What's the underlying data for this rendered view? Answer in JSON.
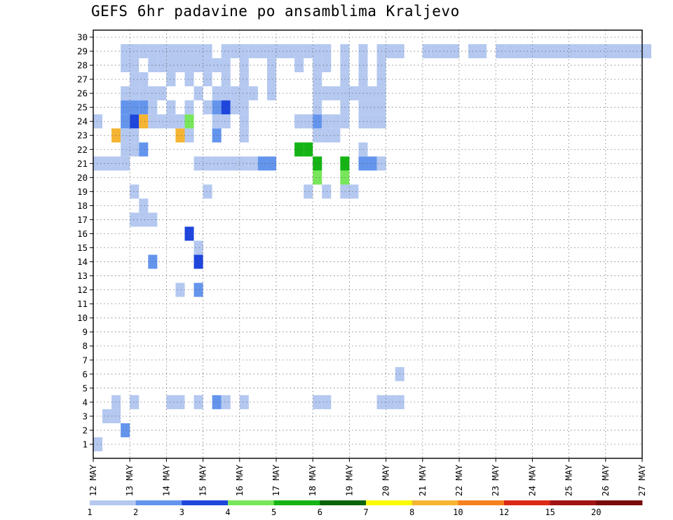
{
  "chart_data": {
    "type": "heatmap",
    "title": "GEFS 6hr padavine po ansamblima Kraljevo",
    "xlabel": "",
    "ylabel": "",
    "x_tick_labels": [
      "12 MAY",
      "13 MAY",
      "14 MAY",
      "15 MAY",
      "16 MAY",
      "17 MAY",
      "18 MAY",
      "19 MAY",
      "20 MAY",
      "21 MAY",
      "22 MAY",
      "23 MAY",
      "24 MAY",
      "25 MAY",
      "26 MAY",
      "27 MAY"
    ],
    "y_tick_labels": [
      "1",
      "2",
      "3",
      "4",
      "5",
      "6",
      "7",
      "8",
      "9",
      "10",
      "11",
      "12",
      "13",
      "14",
      "15",
      "16",
      "17",
      "18",
      "19",
      "20",
      "21",
      "22",
      "23",
      "24",
      "25",
      "26",
      "27",
      "28",
      "29",
      "30"
    ],
    "grid": true,
    "legend_placement": "bottom",
    "colorbar_labels": [
      "1",
      "2",
      "3",
      "4",
      "5",
      "6",
      "7",
      "8",
      "10",
      "12",
      "15",
      "20"
    ],
    "colorbar_colors": [
      "#b4c8f0",
      "#6495ed",
      "#1e46dc",
      "#78e65a",
      "#14b414",
      "#0a640a",
      "#fafa00",
      "#f5b432",
      "#f5821e",
      "#dc2814",
      "#a01414",
      "#780a0a"
    ],
    "x_range_days": [
      "12 MAY",
      "27 MAY"
    ],
    "time_step": "6hr",
    "cells": [
      [
        0,
        1,
        1
      ],
      [
        3,
        2,
        2
      ],
      [
        1,
        3,
        1
      ],
      [
        2,
        3,
        1
      ],
      [
        2,
        4,
        1
      ],
      [
        4,
        4,
        1
      ],
      [
        8,
        4,
        1
      ],
      [
        9,
        4,
        1
      ],
      [
        11,
        4,
        1
      ],
      [
        13,
        4,
        2
      ],
      [
        14,
        4,
        1
      ],
      [
        16,
        4,
        1
      ],
      [
        24,
        4,
        1
      ],
      [
        25,
        4,
        1
      ],
      [
        31,
        4,
        1
      ],
      [
        32,
        4,
        1
      ],
      [
        33,
        4,
        1
      ],
      [
        33,
        6,
        1
      ],
      [
        9,
        12,
        1
      ],
      [
        11,
        12,
        2
      ],
      [
        6,
        14,
        2
      ],
      [
        11,
        14,
        3
      ],
      [
        11,
        15,
        1
      ],
      [
        10,
        16,
        3
      ],
      [
        4,
        17,
        1
      ],
      [
        5,
        17,
        1
      ],
      [
        6,
        17,
        1
      ],
      [
        5,
        18,
        1
      ],
      [
        4,
        19,
        1
      ],
      [
        12,
        19,
        1
      ],
      [
        23,
        19,
        1
      ],
      [
        25,
        19,
        1
      ],
      [
        27,
        19,
        1
      ],
      [
        28,
        19,
        1
      ],
      [
        24,
        20,
        4
      ],
      [
        27,
        20,
        4
      ],
      [
        0,
        21,
        1
      ],
      [
        1,
        21,
        1
      ],
      [
        2,
        21,
        1
      ],
      [
        3,
        21,
        1
      ],
      [
        11,
        21,
        1
      ],
      [
        12,
        21,
        1
      ],
      [
        13,
        21,
        1
      ],
      [
        14,
        21,
        1
      ],
      [
        15,
        21,
        1
      ],
      [
        16,
        21,
        1
      ],
      [
        17,
        21,
        1
      ],
      [
        18,
        21,
        2
      ],
      [
        19,
        21,
        2
      ],
      [
        24,
        21,
        5
      ],
      [
        27,
        21,
        5
      ],
      [
        29,
        21,
        2
      ],
      [
        30,
        21,
        2
      ],
      [
        31,
        21,
        1
      ],
      [
        3,
        22,
        1
      ],
      [
        4,
        22,
        1
      ],
      [
        5,
        22,
        2
      ],
      [
        22,
        22,
        5
      ],
      [
        23,
        22,
        5
      ],
      [
        29,
        22,
        1
      ],
      [
        2,
        23,
        8
      ],
      [
        3,
        23,
        1
      ],
      [
        4,
        23,
        1
      ],
      [
        9,
        23,
        8
      ],
      [
        10,
        23,
        1
      ],
      [
        13,
        23,
        2
      ],
      [
        16,
        23,
        1
      ],
      [
        24,
        23,
        1
      ],
      [
        25,
        23,
        1
      ],
      [
        26,
        23,
        1
      ],
      [
        0,
        24,
        1
      ],
      [
        3,
        24,
        2
      ],
      [
        4,
        24,
        3
      ],
      [
        5,
        24,
        8
      ],
      [
        6,
        24,
        1
      ],
      [
        7,
        24,
        1
      ],
      [
        8,
        24,
        1
      ],
      [
        9,
        24,
        1
      ],
      [
        10,
        24,
        4
      ],
      [
        13,
        24,
        1
      ],
      [
        14,
        24,
        1
      ],
      [
        16,
        24,
        1
      ],
      [
        22,
        24,
        1
      ],
      [
        23,
        24,
        1
      ],
      [
        24,
        24,
        2
      ],
      [
        25,
        24,
        1
      ],
      [
        26,
        24,
        1
      ],
      [
        27,
        24,
        1
      ],
      [
        29,
        24,
        1
      ],
      [
        30,
        24,
        1
      ],
      [
        31,
        24,
        1
      ],
      [
        3,
        25,
        2
      ],
      [
        4,
        25,
        2
      ],
      [
        5,
        25,
        2
      ],
      [
        6,
        25,
        1
      ],
      [
        8,
        25,
        1
      ],
      [
        10,
        25,
        1
      ],
      [
        12,
        25,
        1
      ],
      [
        13,
        25,
        2
      ],
      [
        14,
        25,
        3
      ],
      [
        15,
        25,
        1
      ],
      [
        16,
        25,
        1
      ],
      [
        24,
        25,
        1
      ],
      [
        27,
        25,
        1
      ],
      [
        29,
        25,
        1
      ],
      [
        30,
        25,
        1
      ],
      [
        31,
        25,
        1
      ],
      [
        3,
        26,
        1
      ],
      [
        4,
        26,
        1
      ],
      [
        5,
        26,
        1
      ],
      [
        6,
        26,
        1
      ],
      [
        7,
        26,
        1
      ],
      [
        11,
        26,
        1
      ],
      [
        13,
        26,
        1
      ],
      [
        14,
        26,
        1
      ],
      [
        15,
        26,
        1
      ],
      [
        16,
        26,
        1
      ],
      [
        17,
        26,
        1
      ],
      [
        19,
        26,
        1
      ],
      [
        24,
        26,
        1
      ],
      [
        25,
        26,
        1
      ],
      [
        26,
        26,
        1
      ],
      [
        27,
        26,
        1
      ],
      [
        28,
        26,
        1
      ],
      [
        29,
        26,
        1
      ],
      [
        30,
        26,
        1
      ],
      [
        31,
        26,
        1
      ],
      [
        4,
        27,
        1
      ],
      [
        5,
        27,
        1
      ],
      [
        8,
        27,
        1
      ],
      [
        10,
        27,
        1
      ],
      [
        12,
        27,
        1
      ],
      [
        14,
        27,
        1
      ],
      [
        16,
        27,
        1
      ],
      [
        19,
        27,
        1
      ],
      [
        24,
        27,
        1
      ],
      [
        27,
        27,
        1
      ],
      [
        29,
        27,
        1
      ],
      [
        31,
        27,
        1
      ],
      [
        3,
        28,
        1
      ],
      [
        4,
        28,
        1
      ],
      [
        6,
        28,
        1
      ],
      [
        7,
        28,
        1
      ],
      [
        8,
        28,
        1
      ],
      [
        9,
        28,
        1
      ],
      [
        10,
        28,
        1
      ],
      [
        11,
        28,
        1
      ],
      [
        12,
        28,
        1
      ],
      [
        13,
        28,
        1
      ],
      [
        14,
        28,
        1
      ],
      [
        16,
        28,
        1
      ],
      [
        19,
        28,
        1
      ],
      [
        22,
        28,
        1
      ],
      [
        24,
        28,
        1
      ],
      [
        25,
        28,
        1
      ],
      [
        27,
        28,
        1
      ],
      [
        29,
        28,
        1
      ],
      [
        31,
        28,
        1
      ],
      [
        3,
        29,
        1
      ],
      [
        4,
        29,
        1
      ],
      [
        5,
        29,
        1
      ],
      [
        6,
        29,
        1
      ],
      [
        7,
        29,
        1
      ],
      [
        8,
        29,
        1
      ],
      [
        9,
        29,
        1
      ],
      [
        10,
        29,
        1
      ],
      [
        11,
        29,
        1
      ],
      [
        12,
        29,
        1
      ],
      [
        14,
        29,
        1
      ],
      [
        15,
        29,
        1
      ],
      [
        16,
        29,
        1
      ],
      [
        17,
        29,
        1
      ],
      [
        18,
        29,
        1
      ],
      [
        19,
        29,
        1
      ],
      [
        20,
        29,
        1
      ],
      [
        21,
        29,
        1
      ],
      [
        22,
        29,
        1
      ],
      [
        23,
        29,
        1
      ],
      [
        24,
        29,
        1
      ],
      [
        25,
        29,
        1
      ],
      [
        27,
        29,
        1
      ],
      [
        29,
        29,
        1
      ],
      [
        31,
        29,
        1
      ],
      [
        32,
        29,
        1
      ],
      [
        33,
        29,
        1
      ],
      [
        36,
        29,
        1
      ],
      [
        37,
        29,
        1
      ],
      [
        38,
        29,
        1
      ],
      [
        39,
        29,
        1
      ],
      [
        41,
        29,
        1
      ],
      [
        42,
        29,
        1
      ],
      [
        44,
        29,
        1
      ],
      [
        45,
        29,
        1
      ],
      [
        46,
        29,
        1
      ],
      [
        47,
        29,
        1
      ],
      [
        48,
        29,
        1
      ],
      [
        49,
        29,
        1
      ],
      [
        50,
        29,
        1
      ],
      [
        51,
        29,
        1
      ],
      [
        52,
        29,
        1
      ],
      [
        53,
        29,
        1
      ],
      [
        54,
        29,
        1
      ],
      [
        55,
        29,
        1
      ],
      [
        56,
        29,
        1
      ],
      [
        57,
        29,
        1
      ],
      [
        58,
        29,
        1
      ],
      [
        59,
        29,
        1
      ],
      [
        60,
        29,
        1
      ]
    ]
  }
}
